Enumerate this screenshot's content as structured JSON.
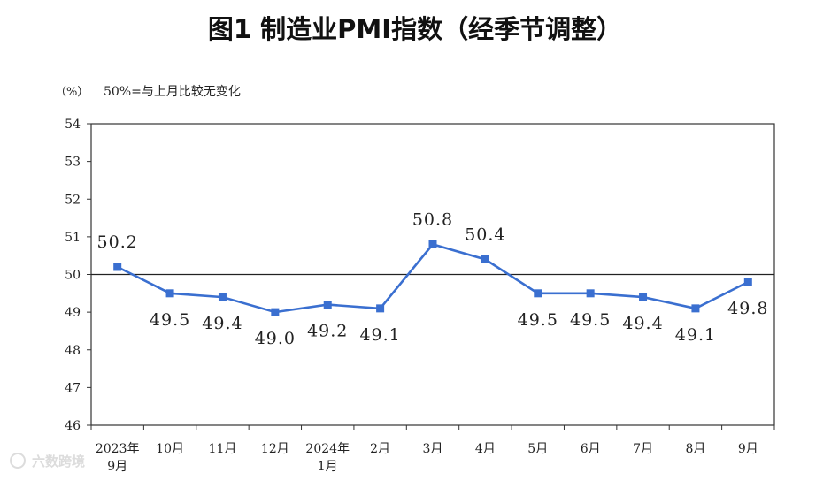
{
  "chart_data": {
    "type": "line",
    "title": "图1  制造业PMI指数（经季节调整）",
    "ylabel": "（%）",
    "note": "50%=与上月比较无变化",
    "categories": [
      [
        "2023年",
        "9月"
      ],
      [
        "10月"
      ],
      [
        "11月"
      ],
      [
        "12月"
      ],
      [
        "2024年",
        "1月"
      ],
      [
        "2月"
      ],
      [
        "3月"
      ],
      [
        "4月"
      ],
      [
        "5月"
      ],
      [
        "6月"
      ],
      [
        "7月"
      ],
      [
        "8月"
      ],
      [
        "9月"
      ]
    ],
    "values": [
      50.2,
      49.5,
      49.4,
      49.0,
      49.2,
      49.1,
      50.8,
      50.4,
      49.5,
      49.5,
      49.4,
      49.1,
      49.8
    ],
    "data_labels": [
      "50.2",
      "49.5",
      "49.4",
      "49.0",
      "49.2",
      "49.1",
      "50.8",
      "50.4",
      "49.5",
      "49.5",
      "49.4",
      "49.1",
      "49.8"
    ],
    "label_positions": [
      "above",
      "below",
      "below",
      "below",
      "below",
      "below",
      "above",
      "above",
      "below",
      "below",
      "below",
      "below",
      "below"
    ],
    "ylim": [
      46,
      54
    ],
    "yticks": [
      46,
      47,
      48,
      49,
      50,
      51,
      52,
      53,
      54
    ],
    "reference_line": 50,
    "grid": false,
    "legend": "none",
    "colors": {
      "series": "#3a6fd0",
      "reference": "#222222",
      "axis": "#333333"
    }
  },
  "watermark": "六数跨境"
}
